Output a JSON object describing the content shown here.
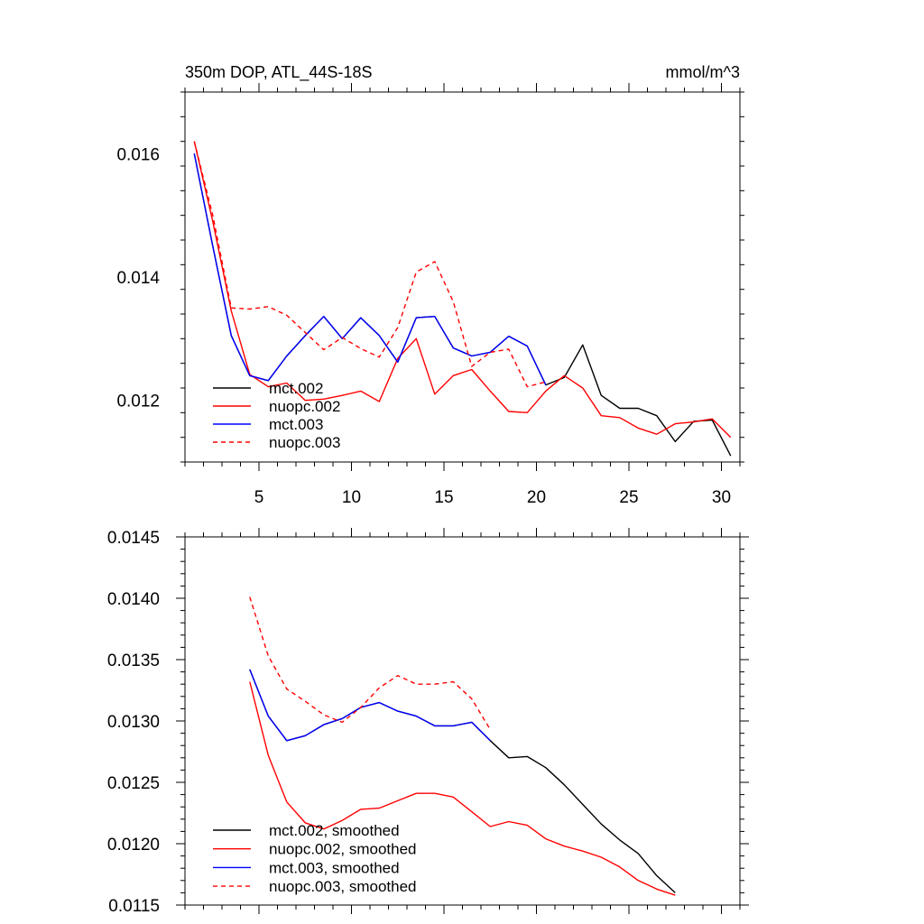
{
  "chart_data": [
    {
      "type": "line",
      "title": "350m DOP, ATL_44S-18S",
      "units": "mmol/m^3",
      "xlabel": "",
      "ylabel": "",
      "xlim": [
        1,
        31
      ],
      "ylim": [
        0.011,
        0.017
      ],
      "x_ticks": [
        5,
        10,
        15,
        20,
        25,
        30
      ],
      "x_tick_labels": [
        "5",
        "10",
        "15",
        "20",
        "25",
        "30"
      ],
      "y_ticks": [
        0.012,
        0.014,
        0.016
      ],
      "y_tick_labels": [
        "0.012",
        "0.014",
        "0.016"
      ],
      "grid": false,
      "legend_position": "bottom-left",
      "series": [
        {
          "name": "mct.002",
          "color": "#000000",
          "dash": "solid",
          "x": [
            1.5,
            2.5,
            3.5,
            4.5,
            5.5,
            6.5,
            7.5,
            8.5,
            9.5,
            10.5,
            11.5,
            12.5,
            13.5,
            14.5,
            15.5,
            16.5,
            17.5,
            18.5,
            19.5,
            20.5,
            21.5,
            22.5,
            23.5,
            24.5,
            25.5,
            26.5,
            27.5,
            28.5,
            29.5,
            30.5
          ],
          "values": [
            0.016,
            0.0145,
            0.01305,
            0.0124,
            0.01232,
            0.01272,
            0.01305,
            0.01336,
            0.013,
            0.01334,
            0.01305,
            0.01262,
            0.01334,
            0.01336,
            0.01285,
            0.01272,
            0.01278,
            0.01304,
            0.01288,
            0.01225,
            0.01237,
            0.0129,
            0.01208,
            0.01187,
            0.01187,
            0.01175,
            0.01133,
            0.01166,
            0.01168,
            0.0111
          ]
        },
        {
          "name": "nuopc.002",
          "color": "#ff0000",
          "dash": "solid",
          "x": [
            1.5,
            2.5,
            3.5,
            4.5,
            5.5,
            6.5,
            7.5,
            8.5,
            9.5,
            10.5,
            11.5,
            12.5,
            13.5,
            14.5,
            15.5,
            16.5,
            17.5,
            18.5,
            19.5,
            20.5,
            21.5,
            22.5,
            23.5,
            24.5,
            25.5,
            26.5,
            27.5,
            28.5,
            29.5,
            30.5
          ],
          "values": [
            0.0162,
            0.0149,
            0.01345,
            0.01242,
            0.01222,
            0.01228,
            0.012,
            0.01202,
            0.01208,
            0.01215,
            0.01198,
            0.01268,
            0.013,
            0.0121,
            0.0124,
            0.0125,
            0.01215,
            0.01182,
            0.0118,
            0.01215,
            0.0124,
            0.0122,
            0.01175,
            0.01172,
            0.01155,
            0.01145,
            0.01162,
            0.01165,
            0.0117,
            0.0114
          ]
        },
        {
          "name": "mct.003",
          "color": "#0000ff",
          "dash": "solid",
          "x": [
            1.5,
            2.5,
            3.5,
            4.5,
            5.5,
            6.5,
            7.5,
            8.5,
            9.5,
            10.5,
            11.5,
            12.5,
            13.5,
            14.5,
            15.5,
            16.5,
            17.5,
            18.5,
            19.5,
            20.5
          ],
          "values": [
            0.016,
            0.0145,
            0.01305,
            0.0124,
            0.01232,
            0.01272,
            0.01305,
            0.01336,
            0.013,
            0.01334,
            0.01305,
            0.01262,
            0.01334,
            0.01336,
            0.01285,
            0.01272,
            0.01278,
            0.01304,
            0.01288,
            0.01225
          ]
        },
        {
          "name": "nuopc.003",
          "color": "#ff0000",
          "dash": "dashed",
          "x": [
            1.5,
            2.5,
            3.5,
            4.5,
            5.5,
            6.5,
            7.5,
            8.5,
            9.5,
            10.5,
            11.5,
            12.5,
            13.5,
            14.5,
            15.5,
            16.5,
            17.5,
            18.5,
            19.5,
            20.5
          ],
          "values": [
            0.0162,
            0.015,
            0.0135,
            0.01348,
            0.01352,
            0.01338,
            0.0131,
            0.01282,
            0.01302,
            0.01284,
            0.0127,
            0.01318,
            0.01408,
            0.01425,
            0.0136,
            0.01255,
            0.01278,
            0.01283,
            0.01222,
            0.0123
          ]
        }
      ]
    },
    {
      "type": "line",
      "title": "",
      "xlabel": "",
      "ylabel": "",
      "xlim": [
        1,
        31
      ],
      "ylim": [
        0.0115,
        0.0145
      ],
      "x_ticks": [
        5,
        10,
        15,
        20,
        25,
        30
      ],
      "x_tick_labels": [],
      "y_ticks": [
        0.0115,
        0.012,
        0.0125,
        0.013,
        0.0135,
        0.014,
        0.0145
      ],
      "y_tick_labels": [
        "0.0115",
        "0.0120",
        "0.0125",
        "0.0130",
        "0.0135",
        "0.0140",
        "0.0145"
      ],
      "grid": false,
      "legend_position": "bottom-left",
      "series": [
        {
          "name": "mct.002, smoothed",
          "color": "#000000",
          "dash": "solid",
          "x": [
            4.5,
            5.5,
            6.5,
            7.5,
            8.5,
            9.5,
            10.5,
            11.5,
            12.5,
            13.5,
            14.5,
            15.5,
            16.5,
            17.5,
            18.5,
            19.5,
            20.5,
            21.5,
            22.5,
            23.5,
            24.5,
            25.5,
            26.5,
            27.5
          ],
          "values": [
            0.01342,
            0.01304,
            0.01284,
            0.01288,
            0.01297,
            0.01302,
            0.01311,
            0.01315,
            0.01308,
            0.01304,
            0.01296,
            0.01296,
            0.01299,
            0.01284,
            0.0127,
            0.01271,
            0.01262,
            0.01248,
            0.01232,
            0.01216,
            0.01203,
            0.01192,
            0.01174,
            0.0116
          ]
        },
        {
          "name": "nuopc.002, smoothed",
          "color": "#ff0000",
          "dash": "solid",
          "x": [
            4.5,
            5.5,
            6.5,
            7.5,
            8.5,
            9.5,
            10.5,
            11.5,
            12.5,
            13.5,
            14.5,
            15.5,
            16.5,
            17.5,
            18.5,
            19.5,
            20.5,
            21.5,
            22.5,
            23.5,
            24.5,
            25.5,
            26.5,
            27.5
          ],
          "values": [
            0.01332,
            0.01272,
            0.01234,
            0.01217,
            0.01212,
            0.01219,
            0.01228,
            0.01229,
            0.01235,
            0.01241,
            0.01241,
            0.01238,
            0.01226,
            0.01214,
            0.01218,
            0.01215,
            0.01204,
            0.01198,
            0.01194,
            0.01189,
            0.01181,
            0.0117,
            0.01163,
            0.01158
          ]
        },
        {
          "name": "mct.003, smoothed",
          "color": "#0000ff",
          "dash": "solid",
          "x": [
            4.5,
            5.5,
            6.5,
            7.5,
            8.5,
            9.5,
            10.5,
            11.5,
            12.5,
            13.5,
            14.5,
            15.5,
            16.5,
            17.5
          ],
          "values": [
            0.01342,
            0.01304,
            0.01284,
            0.01288,
            0.01297,
            0.01302,
            0.01311,
            0.01315,
            0.01308,
            0.01304,
            0.01296,
            0.01296,
            0.01299,
            0.01284
          ]
        },
        {
          "name": "nuopc.003, smoothed",
          "color": "#ff0000",
          "dash": "dashed",
          "x": [
            4.5,
            5.5,
            6.5,
            7.5,
            8.5,
            9.5,
            10.5,
            11.5,
            12.5,
            13.5,
            14.5,
            15.5,
            16.5,
            17.5
          ],
          "values": [
            0.01401,
            0.01353,
            0.01326,
            0.01316,
            0.01305,
            0.01299,
            0.01311,
            0.01327,
            0.01337,
            0.0133,
            0.0133,
            0.01332,
            0.01318,
            0.01293
          ]
        }
      ]
    }
  ]
}
